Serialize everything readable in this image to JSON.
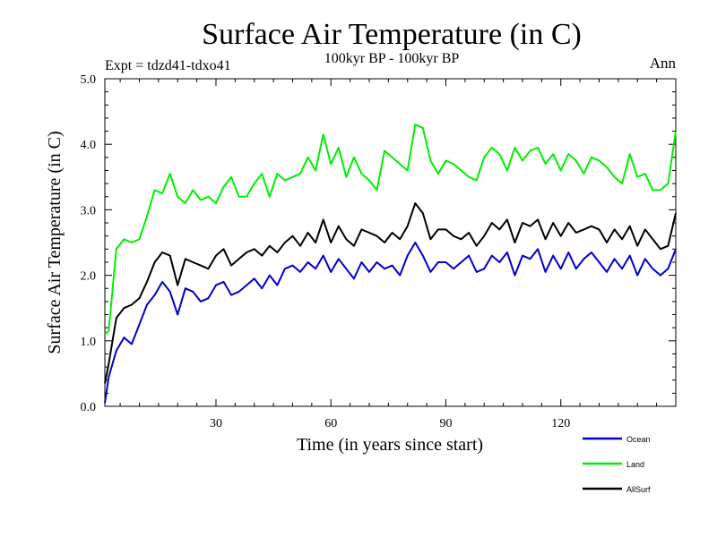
{
  "chart_data": {
    "type": "line",
    "title": "Surface Air Temperature (in C)",
    "subtitle": "100kyr BP - 100kyr BP",
    "expt_label": "Expt = tdzd41-tdxo41",
    "season_label": "Ann",
    "xlabel": "Time (in years since start)",
    "ylabel": "Surface Air Temperature (in C)",
    "xlim": [
      1,
      150
    ],
    "ylim": [
      0,
      5
    ],
    "xticks": [
      30,
      60,
      90,
      120
    ],
    "xtick_labels": [
      "30",
      "60",
      "90",
      "120"
    ],
    "yticks": [
      0,
      1,
      2,
      3,
      4,
      5
    ],
    "ytick_labels": [
      "0.0",
      "1.0",
      "2.0",
      "3.0",
      "4.0",
      "5.0"
    ],
    "legend_position": "bottom-right, outside plot",
    "series": [
      {
        "name": "Ocean",
        "color": "#0000cc",
        "x": [
          1,
          2,
          4,
          6,
          8,
          10,
          12,
          14,
          16,
          18,
          20,
          22,
          24,
          26,
          28,
          30,
          32,
          34,
          36,
          38,
          40,
          42,
          44,
          46,
          48,
          50,
          52,
          54,
          56,
          58,
          60,
          62,
          64,
          66,
          68,
          70,
          72,
          74,
          76,
          78,
          80,
          82,
          84,
          86,
          88,
          90,
          92,
          94,
          96,
          98,
          100,
          102,
          104,
          106,
          108,
          110,
          112,
          114,
          116,
          118,
          120,
          122,
          124,
          126,
          128,
          130,
          132,
          134,
          136,
          138,
          140,
          142,
          144,
          146,
          148,
          150
        ],
        "values": [
          0.05,
          0.45,
          0.85,
          1.05,
          0.95,
          1.25,
          1.55,
          1.7,
          1.9,
          1.75,
          1.4,
          1.8,
          1.75,
          1.6,
          1.65,
          1.85,
          1.9,
          1.7,
          1.75,
          1.85,
          1.95,
          1.8,
          2.0,
          1.85,
          2.1,
          2.15,
          2.05,
          2.2,
          2.1,
          2.3,
          2.05,
          2.25,
          2.1,
          1.95,
          2.2,
          2.05,
          2.2,
          2.1,
          2.15,
          2.0,
          2.3,
          2.5,
          2.3,
          2.05,
          2.2,
          2.2,
          2.1,
          2.2,
          2.3,
          2.05,
          2.1,
          2.3,
          2.2,
          2.35,
          2.0,
          2.3,
          2.25,
          2.4,
          2.05,
          2.3,
          2.1,
          2.35,
          2.1,
          2.25,
          2.35,
          2.2,
          2.05,
          2.25,
          2.1,
          2.3,
          2.0,
          2.25,
          2.1,
          2.0,
          2.1,
          2.4
        ]
      },
      {
        "name": "Land",
        "color": "#00ee00",
        "x": [
          1,
          2,
          4,
          6,
          8,
          10,
          12,
          14,
          16,
          18,
          20,
          22,
          24,
          26,
          28,
          30,
          32,
          34,
          36,
          38,
          40,
          42,
          44,
          46,
          48,
          50,
          52,
          54,
          56,
          58,
          60,
          62,
          64,
          66,
          68,
          70,
          72,
          74,
          76,
          78,
          80,
          82,
          84,
          86,
          88,
          90,
          92,
          94,
          96,
          98,
          100,
          102,
          104,
          106,
          108,
          110,
          112,
          114,
          116,
          118,
          120,
          122,
          124,
          126,
          128,
          130,
          132,
          134,
          136,
          138,
          140,
          142,
          144,
          146,
          148,
          150
        ],
        "values": [
          1.1,
          1.15,
          2.4,
          2.55,
          2.5,
          2.55,
          2.9,
          3.3,
          3.25,
          3.55,
          3.2,
          3.1,
          3.3,
          3.15,
          3.2,
          3.1,
          3.35,
          3.5,
          3.2,
          3.2,
          3.4,
          3.55,
          3.2,
          3.55,
          3.45,
          3.5,
          3.55,
          3.8,
          3.6,
          4.15,
          3.7,
          3.95,
          3.5,
          3.8,
          3.55,
          3.45,
          3.3,
          3.9,
          3.8,
          3.7,
          3.6,
          4.3,
          4.25,
          3.75,
          3.55,
          3.75,
          3.7,
          3.6,
          3.5,
          3.45,
          3.8,
          3.95,
          3.85,
          3.6,
          3.95,
          3.75,
          3.9,
          3.95,
          3.7,
          3.85,
          3.6,
          3.85,
          3.75,
          3.55,
          3.8,
          3.75,
          3.65,
          3.5,
          3.4,
          3.85,
          3.5,
          3.55,
          3.3,
          3.3,
          3.4,
          4.2
        ]
      },
      {
        "name": "AllSurf",
        "color": "#000000",
        "x": [
          1,
          2,
          4,
          6,
          8,
          10,
          12,
          14,
          16,
          18,
          20,
          22,
          24,
          26,
          28,
          30,
          32,
          34,
          36,
          38,
          40,
          42,
          44,
          46,
          48,
          50,
          52,
          54,
          56,
          58,
          60,
          62,
          64,
          66,
          68,
          70,
          72,
          74,
          76,
          78,
          80,
          82,
          84,
          86,
          88,
          90,
          92,
          94,
          96,
          98,
          100,
          102,
          104,
          106,
          108,
          110,
          112,
          114,
          116,
          118,
          120,
          122,
          124,
          126,
          128,
          130,
          132,
          134,
          136,
          138,
          140,
          142,
          144,
          146,
          148,
          150
        ],
        "values": [
          0.35,
          0.65,
          1.35,
          1.5,
          1.55,
          1.65,
          1.9,
          2.2,
          2.35,
          2.3,
          1.85,
          2.25,
          2.2,
          2.15,
          2.1,
          2.3,
          2.4,
          2.15,
          2.25,
          2.35,
          2.4,
          2.3,
          2.45,
          2.35,
          2.5,
          2.6,
          2.45,
          2.65,
          2.5,
          2.85,
          2.5,
          2.75,
          2.55,
          2.45,
          2.7,
          2.65,
          2.6,
          2.5,
          2.65,
          2.55,
          2.75,
          3.1,
          2.95,
          2.55,
          2.7,
          2.7,
          2.6,
          2.55,
          2.65,
          2.45,
          2.6,
          2.8,
          2.7,
          2.85,
          2.5,
          2.8,
          2.75,
          2.85,
          2.55,
          2.8,
          2.6,
          2.8,
          2.65,
          2.7,
          2.75,
          2.7,
          2.5,
          2.7,
          2.55,
          2.75,
          2.45,
          2.7,
          2.55,
          2.4,
          2.45,
          2.95
        ]
      }
    ]
  }
}
